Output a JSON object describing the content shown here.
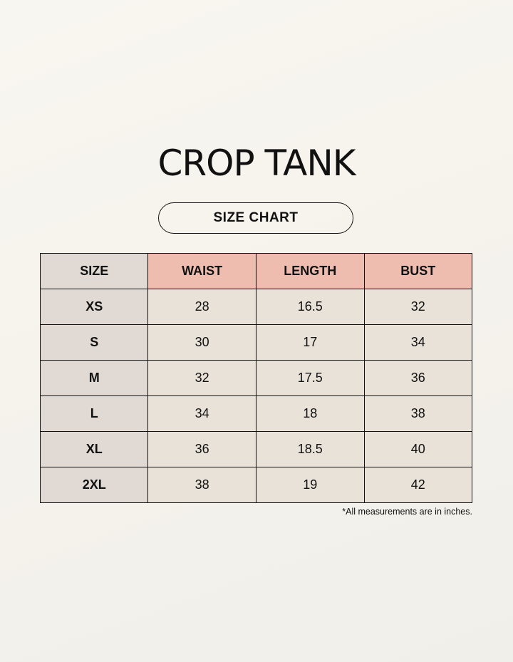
{
  "title": "CROP TANK",
  "subtitle": "SIZE CHART",
  "colors": {
    "header": "#efbdb0",
    "size_column": "#e0d9d4",
    "cell": "#e9e2d8",
    "background": "#f6f4ee"
  },
  "table": {
    "headers": [
      "SIZE",
      "WAIST",
      "LENGTH",
      "BUST"
    ],
    "rows": [
      [
        "XS",
        "28",
        "16.5",
        "32"
      ],
      [
        "S",
        "30",
        "17",
        "34"
      ],
      [
        "M",
        "32",
        "17.5",
        "36"
      ],
      [
        "L",
        "34",
        "18",
        "38"
      ],
      [
        "XL",
        "36",
        "18.5",
        "40"
      ],
      [
        "2XL",
        "38",
        "19",
        "42"
      ]
    ]
  },
  "note": "*All measurements are in inches."
}
